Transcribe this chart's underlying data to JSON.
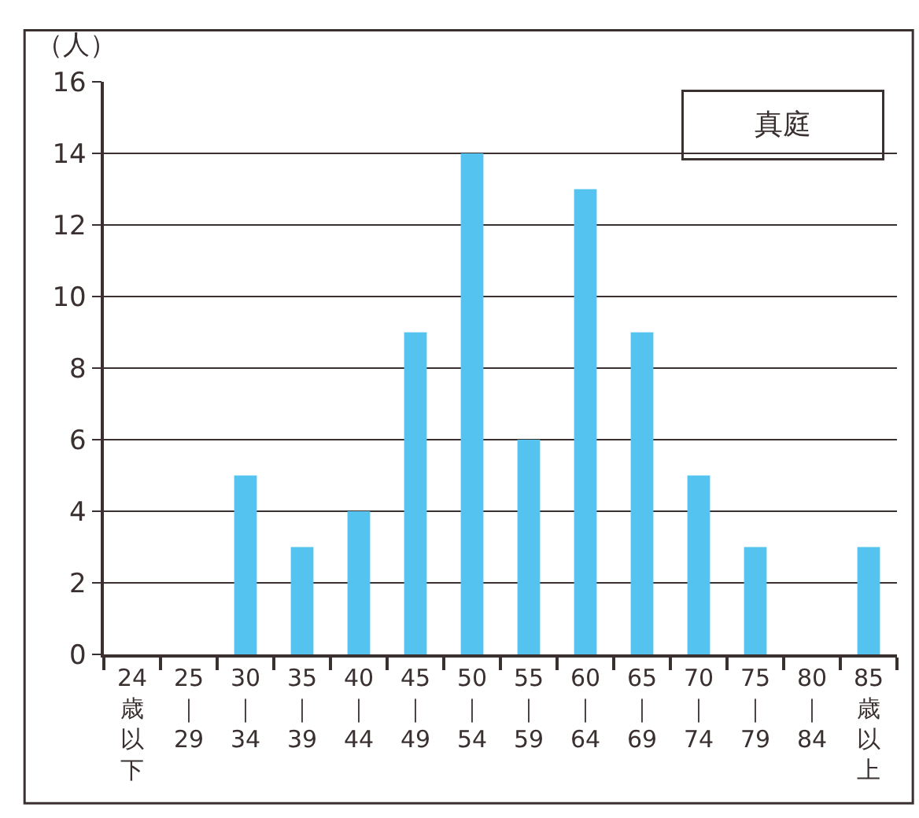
{
  "chart_data": {
    "type": "bar",
    "title": "真庭",
    "ylabel": "（人）",
    "categories": [
      "24歳以下",
      "25｜29",
      "30｜34",
      "35｜39",
      "40｜44",
      "45｜49",
      "50｜54",
      "55｜59",
      "60｜64",
      "65｜69",
      "70｜74",
      "75｜79",
      "80｜84",
      "85歳以上"
    ],
    "values": [
      0,
      0,
      5,
      3,
      4,
      9,
      14,
      6,
      13,
      9,
      5,
      3,
      0,
      3
    ],
    "color": "#55c3f0",
    "ylim": [
      0,
      16
    ],
    "yticks": [
      0,
      2,
      4,
      6,
      8,
      10,
      12,
      14,
      16
    ],
    "grid": "y"
  }
}
